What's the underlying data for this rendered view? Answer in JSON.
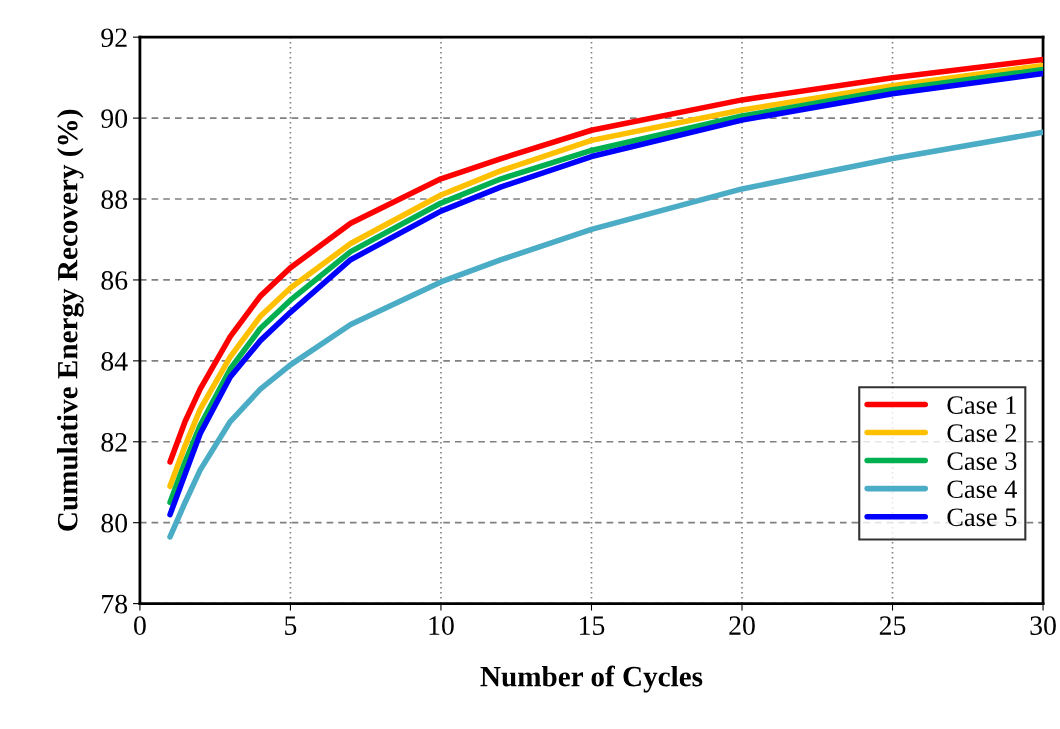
{
  "chart_data": {
    "type": "line",
    "xlabel": "Number of Cycles",
    "ylabel": "Cumulative Energy Recovery (%)",
    "x": [
      1,
      1.5,
      2,
      3,
      4,
      5,
      7,
      10,
      12,
      15,
      20,
      25,
      30
    ],
    "xlim": [
      0,
      30
    ],
    "xticks": [
      0,
      5,
      10,
      15,
      20,
      25,
      30
    ],
    "ylim": [
      78,
      92
    ],
    "yticks": [
      78,
      80,
      82,
      84,
      86,
      88,
      90,
      92
    ],
    "grid": true,
    "legend": "bottom right",
    "marker": "none",
    "line_style": "solid",
    "series": [
      {
        "name": "Case 1",
        "color": "#ff0000",
        "values": [
          81.5,
          82.5,
          83.3,
          84.6,
          85.6,
          86.3,
          87.4,
          88.5,
          89.0,
          89.7,
          90.45,
          91.0,
          91.45
        ]
      },
      {
        "name": "Case 2",
        "color": "#ffc000",
        "values": [
          80.9,
          81.9,
          82.8,
          84.1,
          85.1,
          85.8,
          86.9,
          88.1,
          88.7,
          89.45,
          90.2,
          90.8,
          91.3
        ]
      },
      {
        "name": "Case 3",
        "color": "#00b050",
        "values": [
          80.5,
          81.5,
          82.4,
          83.8,
          84.8,
          85.5,
          86.7,
          87.9,
          88.5,
          89.2,
          90.05,
          90.7,
          91.2
        ]
      },
      {
        "name": "Case 4",
        "color": "#4bacc6",
        "values": [
          79.65,
          80.5,
          81.3,
          82.5,
          83.3,
          83.9,
          84.9,
          85.95,
          86.5,
          87.25,
          88.25,
          89.0,
          89.65
        ]
      },
      {
        "name": "Case 5",
        "color": "#0000ff",
        "values": [
          80.2,
          81.2,
          82.2,
          83.6,
          84.5,
          85.2,
          86.5,
          87.7,
          88.3,
          89.05,
          89.95,
          90.6,
          91.1
        ]
      }
    ]
  }
}
